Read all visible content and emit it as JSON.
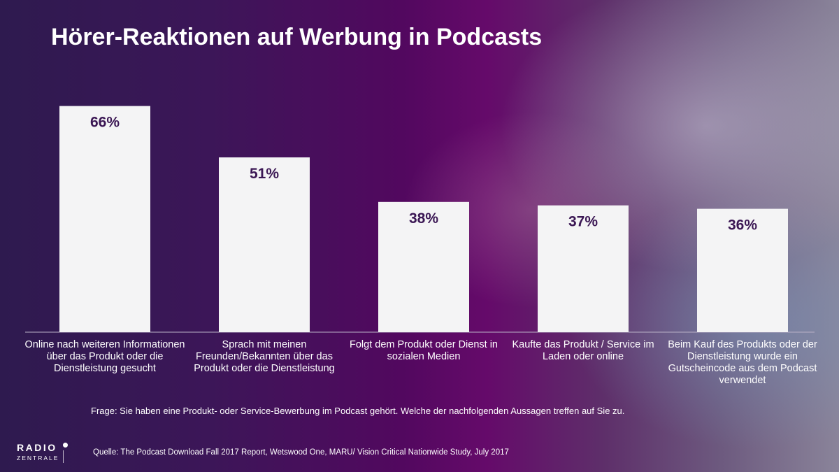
{
  "title": "Hörer-Reaktionen auf Werbung in Podcasts",
  "question": "Frage: Sie haben eine Produkt- oder Service-Bewerbung im Podcast  gehört.  Welche der nachfolgenden Aussagen treffen auf Sie zu.",
  "source": "Quelle: The Podcast Download Fall 2017 Report, Wetswood One, MARU/ Vision Critical Nationwide Study, July 2017",
  "logo": {
    "line1": "RADIO",
    "line2": "ZENTRALE"
  },
  "colors": {
    "bar": "#f4f4f5",
    "bar_label": "#3b1754",
    "text": "#ffffff"
  },
  "chart_data": {
    "type": "bar",
    "title": "Hörer-Reaktionen auf Werbung in Podcasts",
    "xlabel": "",
    "ylabel": "",
    "ylim": [
      0,
      70
    ],
    "grid": false,
    "categories": [
      "Online nach weiteren Informationen über das Produkt oder die Dienstleistung gesucht",
      "Sprach mit meinen Freunden/Bekannten über das Produkt oder die Dienstleistung",
      "Folgt dem Produkt oder Dienst in sozialen Medien",
      "Kaufte das Produkt / Service im Laden oder online",
      "Beim Kauf des Produkts oder der Dienstleistung wurde ein Gutscheincode aus dem Podcast verwendet"
    ],
    "values": [
      66,
      51,
      38,
      37,
      36
    ],
    "value_labels": [
      "66%",
      "51%",
      "38%",
      "37%",
      "36%"
    ],
    "unit": "%"
  }
}
